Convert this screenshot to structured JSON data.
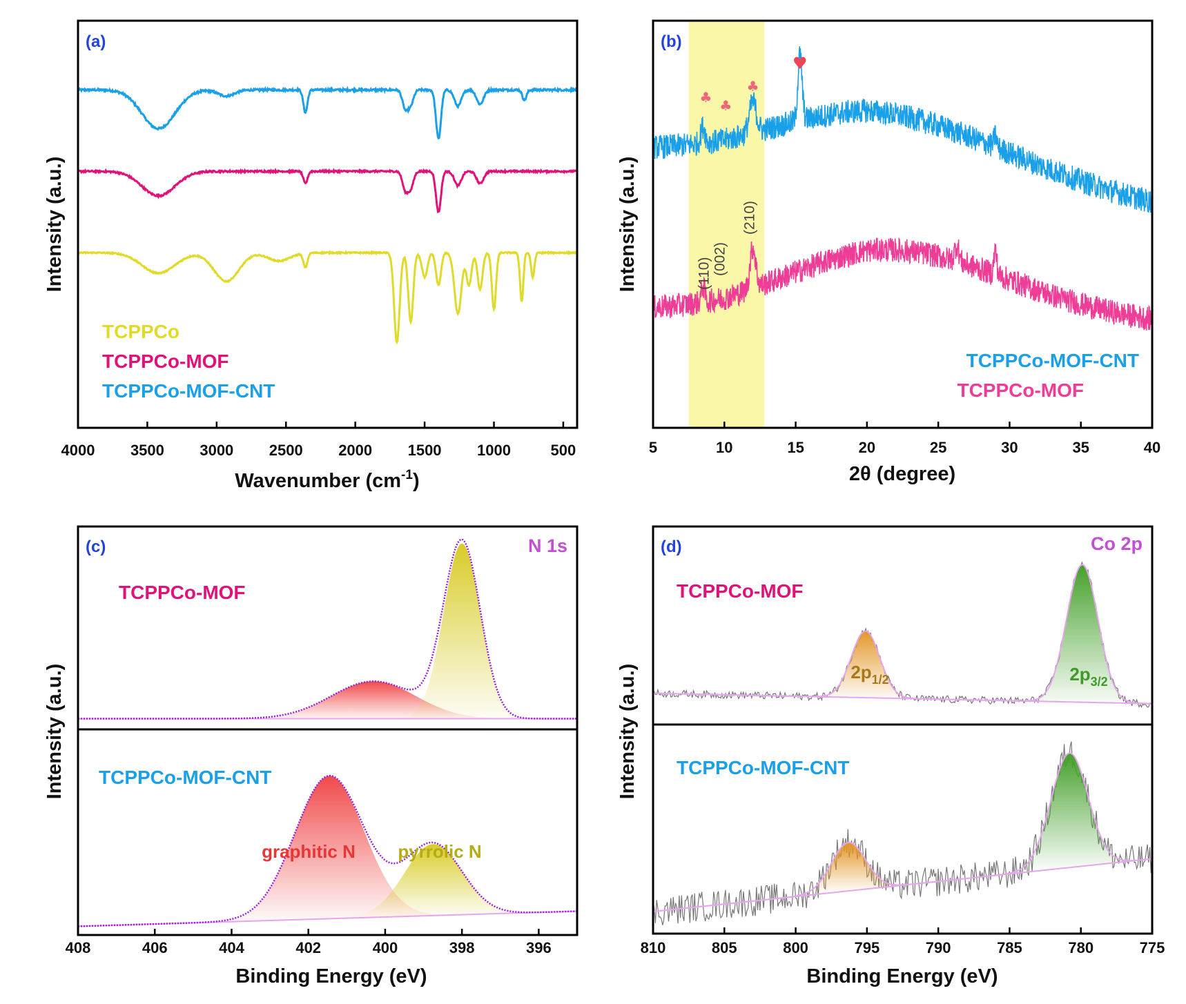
{
  "chart_data": [
    {
      "panel": "(a)",
      "type": "line",
      "xlabel": "Wavenumber (cm",
      "xlabel_sup": "-1",
      "xlabel_end": ")",
      "ylabel": "Intensity (a.u.)",
      "xlim": [
        4000,
        400
      ],
      "xticks": [
        "4000",
        "3500",
        "3000",
        "2500",
        "2000",
        "1500",
        "1000",
        "500"
      ],
      "xtick_values": [
        4000,
        3500,
        3000,
        2500,
        2000,
        1500,
        1000,
        500
      ],
      "ylim": [
        0,
        10
      ],
      "series": [
        {
          "name": "TCPPCo-MOF-CNT",
          "color": "#1aa0e8",
          "offset": 8.3,
          "noise": 0.05,
          "features": [
            [
              3420,
              0.95,
              120
            ],
            [
              2930,
              0.15,
              60
            ],
            [
              2360,
              0.55,
              15
            ],
            [
              1640,
              0.45,
              20
            ],
            [
              1600,
              0.35,
              20
            ],
            [
              1400,
              1.2,
              18
            ],
            [
              1260,
              0.4,
              25
            ],
            [
              1100,
              0.35,
              25
            ],
            [
              780,
              0.25,
              15
            ]
          ]
        },
        {
          "name": "TCPPCo-MOF",
          "color": "#e0127a",
          "offset": 6.3,
          "noise": 0.04,
          "features": [
            [
              3420,
              0.6,
              120
            ],
            [
              2360,
              0.3,
              15
            ],
            [
              1640,
              0.45,
              20
            ],
            [
              1600,
              0.4,
              20
            ],
            [
              1400,
              1.0,
              18
            ],
            [
              1260,
              0.35,
              25
            ],
            [
              1100,
              0.3,
              25
            ]
          ]
        },
        {
          "name": "TCPPCo",
          "color": "#e0da2a",
          "offset": 4.3,
          "noise": 0.03,
          "features": [
            [
              3420,
              0.5,
              120
            ],
            [
              2930,
              0.7,
              90
            ],
            [
              2550,
              0.2,
              80
            ],
            [
              2360,
              0.35,
              15
            ],
            [
              1700,
              2.2,
              20
            ],
            [
              1600,
              1.7,
              18
            ],
            [
              1500,
              0.6,
              20
            ],
            [
              1400,
              0.8,
              18
            ],
            [
              1260,
              1.5,
              25
            ],
            [
              1180,
              0.8,
              18
            ],
            [
              1100,
              0.9,
              18
            ],
            [
              1000,
              1.4,
              15
            ],
            [
              800,
              1.2,
              12
            ],
            [
              720,
              0.6,
              12
            ]
          ]
        }
      ],
      "legend_order": [
        "TCPPCo",
        "TCPPCo-MOF",
        "TCPPCo-MOF-CNT"
      ]
    },
    {
      "panel": "(b)",
      "type": "line",
      "xlabel": "2θ (degree)",
      "ylabel": "Intensity (a.u.)",
      "xlim": [
        5,
        40
      ],
      "xticks": [
        "5",
        "10",
        "15",
        "20",
        "25",
        "30",
        "35",
        "40"
      ],
      "xtick_values": [
        5,
        10,
        15,
        20,
        25,
        30,
        35,
        40
      ],
      "ylim": [
        0,
        10
      ],
      "highlight_x": [
        7.5,
        12.8
      ],
      "highlight_color": "#fbf7a9",
      "series": [
        {
          "name": "TCPPCo-MOF-CNT",
          "color": "#1aa0e8",
          "noise": 0.3,
          "hump": [
            21,
            1.4,
            9
          ],
          "base": [
            [
              5,
              6.6
            ],
            [
              10,
              6.4
            ],
            [
              20,
              6.4
            ],
            [
              40,
              5.4
            ]
          ],
          "peaks": [
            [
              8.5,
              0.4,
              0.15
            ],
            [
              12,
              0.75,
              0.25
            ],
            [
              15.3,
              1.6,
              0.15
            ],
            [
              29,
              0.3,
              0.1
            ]
          ]
        },
        {
          "name": "TCPPCo-MOF",
          "color": "#ee3d96",
          "noise": 0.3,
          "hump": [
            22,
            1.5,
            8
          ],
          "base": [
            [
              5,
              2.8
            ],
            [
              10,
              2.7
            ],
            [
              20,
              2.9
            ],
            [
              40,
              2.55
            ]
          ],
          "peaks": [
            [
              8.5,
              0.4,
              0.12
            ],
            [
              12,
              1.0,
              0.2
            ],
            [
              26.3,
              0.4,
              0.15
            ],
            [
              29,
              0.6,
              0.1
            ]
          ]
        }
      ],
      "hkl_labels": [
        {
          "text": "(110)",
          "x": 8.9
        },
        {
          "text": "(002)",
          "x": 10.0
        },
        {
          "text": "(210)",
          "x": 12.1
        }
      ],
      "markers": [
        {
          "symbol": "♣",
          "x": 8.7,
          "color": "#ee6677"
        },
        {
          "symbol": "♣",
          "x": 10.1,
          "color": "#ee6677"
        },
        {
          "symbol": "♣",
          "x": 12.0,
          "color": "#ee6677"
        },
        {
          "symbol": "♥",
          "x": 15.3,
          "color": "#ee4455"
        }
      ],
      "legend_order": [
        "TCPPCo-MOF-CNT",
        "TCPPCo-MOF"
      ]
    },
    {
      "panel": "(c)",
      "type": "area",
      "corner_label": "N 1s",
      "xlabel": "Binding Energy (eV)",
      "ylabel": "Intensity (a.u.)",
      "xlim": [
        408,
        395
      ],
      "xticks": [
        "408",
        "406",
        "404",
        "402",
        "400",
        "398",
        "396"
      ],
      "xtick_values": [
        408,
        406,
        404,
        402,
        400,
        398,
        396
      ],
      "subplots": [
        {
          "name": "TCPPCo-MOF",
          "name_color": "#e0127a",
          "baseline": [
            0.5,
            0.5
          ],
          "ymax": 9.5,
          "components": [
            {
              "label": "",
              "center": 400.3,
              "height": 1.75,
              "sigma": 1.1,
              "color": "#f04a4a"
            },
            {
              "label": "",
              "center": 398.0,
              "height": 8.2,
              "sigma": 0.48,
              "color": "#d8cc28"
            }
          ]
        },
        {
          "name": "TCPPCo-MOF-CNT",
          "name_color": "#1aa0e8",
          "baseline": [
            0.4,
            1.1
          ],
          "ymax": 9.5,
          "components": [
            {
              "label": "graphitic N",
              "center": 401.45,
              "height": 6.6,
              "sigma": 0.9,
              "color": "#f04a4a",
              "text_color": "#e83535"
            },
            {
              "label": "pyrrolic N",
              "center": 398.75,
              "height": 3.3,
              "sigma": 0.75,
              "color": "#d8cc28",
              "text_color": "#b5ab15"
            }
          ]
        }
      ]
    },
    {
      "panel": "(d)",
      "type": "area",
      "corner_label": "Co 2p",
      "xlabel": "Binding Energy (eV)",
      "ylabel": "Intensity (a.u.)",
      "xlim": [
        810,
        775
      ],
      "xticks": [
        "810",
        "805",
        "800",
        "795",
        "790",
        "785",
        "780",
        "775"
      ],
      "xtick_values": [
        810,
        805,
        800,
        795,
        790,
        785,
        780,
        775
      ],
      "subplots": [
        {
          "name": "TCPPCo-MOF",
          "name_color": "#e0127a",
          "baseline": [
            1.5,
            1.0
          ],
          "ymax": 9.5,
          "noise": 0.18,
          "components": [
            {
              "label": "2p",
              "sub": "1/2",
              "center": 795.1,
              "height": 3.2,
              "sigma": 1.0,
              "color": "#e3982a",
              "text_color": "#a8781a"
            },
            {
              "label": "2p",
              "sub": "3/2",
              "center": 779.9,
              "height": 6.6,
              "sigma": 1.1,
              "color": "#44a02a",
              "text_color": "#3f9a28"
            }
          ]
        },
        {
          "name": "TCPPCo-MOF-CNT",
          "name_color": "#1aa0e8",
          "baseline": [
            1.0,
            3.4
          ],
          "ymax": 9.5,
          "noise": 0.7,
          "components": [
            {
              "label": "",
              "center": 796.3,
              "height": 2.2,
              "sigma": 1.2,
              "color": "#e3982a"
            },
            {
              "label": "",
              "center": 780.8,
              "height": 5.2,
              "sigma": 1.3,
              "color": "#44a02a"
            }
          ]
        }
      ]
    }
  ]
}
